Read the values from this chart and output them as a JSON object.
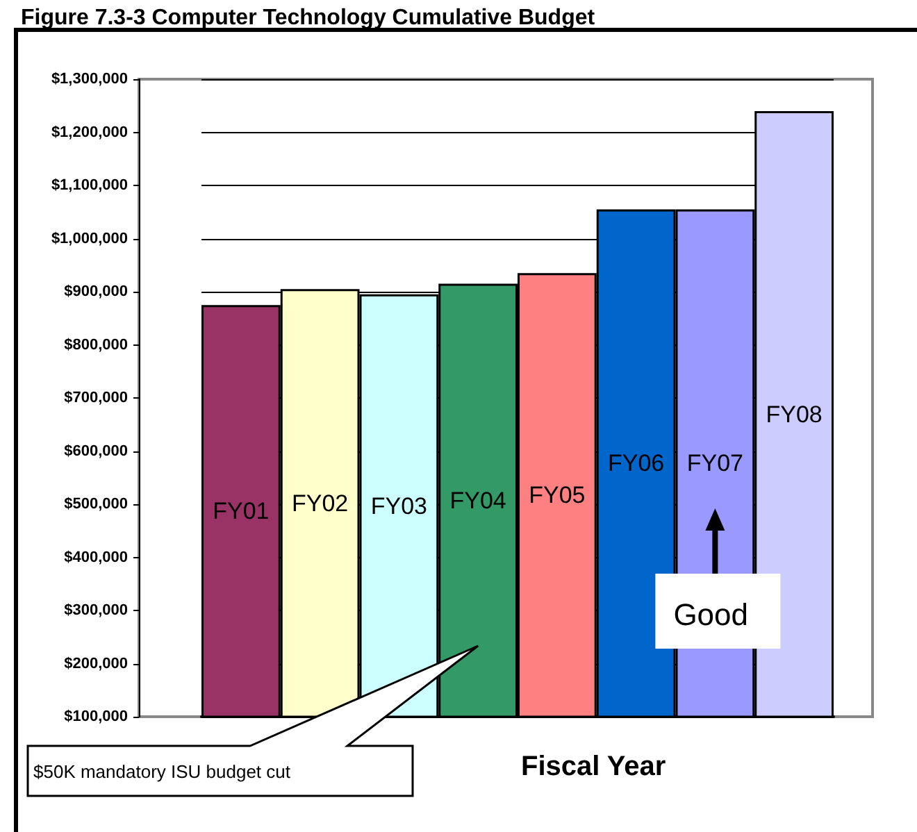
{
  "chart_data": {
    "type": "bar",
    "title": "Figure 7.3-3 Computer Technology Cumulative Budget",
    "xlabel": "Fiscal Year",
    "categories": [
      "FY01",
      "FY02",
      "FY03",
      "FY04",
      "FY05",
      "FY06",
      "FY07",
      "FY08"
    ],
    "values": [
      875000,
      905000,
      895000,
      915000,
      935000,
      1055000,
      1055000,
      1240000
    ],
    "colors": [
      "#993366",
      "#ffffcc",
      "#ccffff",
      "#339966",
      "#ff8080",
      "#0066cc",
      "#9999ff",
      "#ccccff"
    ],
    "ylim": [
      100000,
      1300000
    ],
    "yticks": [
      {
        "value": 100000,
        "label": "$100,000"
      },
      {
        "value": 200000,
        "label": "$200,000"
      },
      {
        "value": 300000,
        "label": "$300,000"
      },
      {
        "value": 400000,
        "label": "$400,000"
      },
      {
        "value": 500000,
        "label": "$500,000"
      },
      {
        "value": 600000,
        "label": "$600,000"
      },
      {
        "value": 700000,
        "label": "$700,000"
      },
      {
        "value": 800000,
        "label": "$800,000"
      },
      {
        "value": 900000,
        "label": "$900,000"
      },
      {
        "value": 1000000,
        "label": "$1,000,000"
      },
      {
        "value": 1100000,
        "label": "$1,100,000"
      },
      {
        "value": 1200000,
        "label": "$1,200,000"
      },
      {
        "value": 1300000,
        "label": "$1,300,000"
      }
    ],
    "annotations": [
      "$50K mandatory ISU budget cut",
      "Good"
    ],
    "grid": "y",
    "tick_labels": "y"
  }
}
